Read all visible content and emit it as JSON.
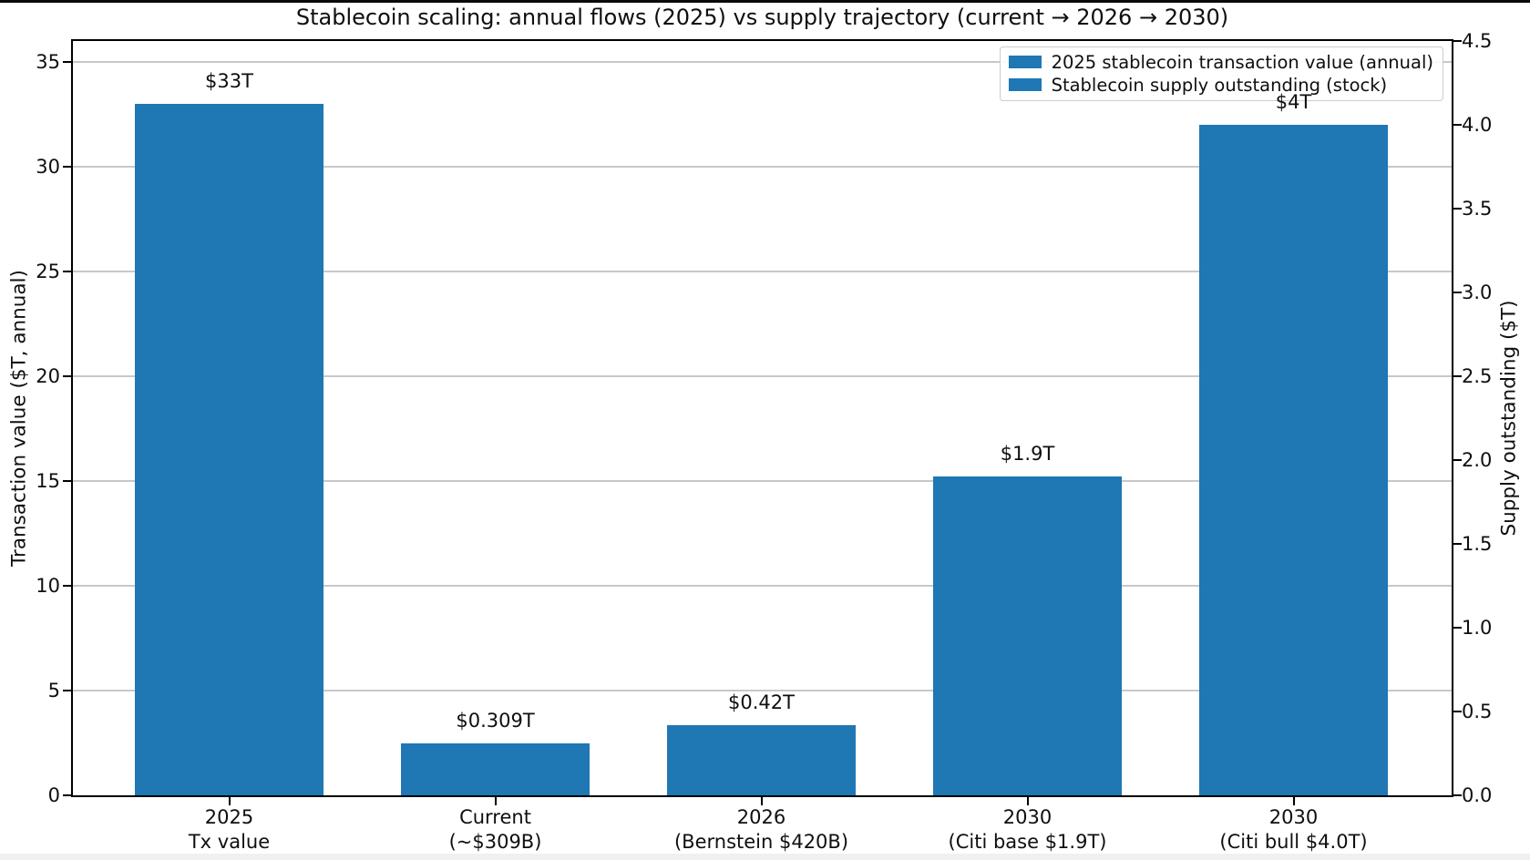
{
  "chart_data": {
    "type": "bar",
    "title": "Stablecoin scaling: annual flows (2025) vs supply trajectory (current → 2026 → 2030)",
    "ylabel_left": "Transaction value ($T, annual)",
    "ylabel_right": "Supply outstanding ($T)",
    "categories": [
      [
        "2025",
        "Tx value"
      ],
      [
        "Current",
        "(~$309B)"
      ],
      [
        "2026",
        "(Bernstein $420B)"
      ],
      [
        "2030",
        "(Citi base $1.9T)"
      ],
      [
        "2030",
        "(Citi bull $4.0T)"
      ]
    ],
    "bars": [
      {
        "value": 33,
        "axis": "left",
        "label": "$33T"
      },
      {
        "value": 0.309,
        "axis": "right",
        "label": "$0.309T"
      },
      {
        "value": 0.42,
        "axis": "right",
        "label": "$0.42T"
      },
      {
        "value": 1.9,
        "axis": "right",
        "label": "$1.9T"
      },
      {
        "value": 4.0,
        "axis": "right",
        "label": "$4T"
      }
    ],
    "bar_color": "#1f77b4",
    "left_axis": {
      "tick_labels": [
        "0",
        "5",
        "10",
        "15",
        "20",
        "25",
        "30",
        "35"
      ],
      "tick_values": [
        0,
        5,
        10,
        15,
        20,
        25,
        30,
        35
      ],
      "ylim": [
        0,
        36
      ]
    },
    "right_axis": {
      "tick_labels": [
        "0.0",
        "0.5",
        "1.0",
        "1.5",
        "2.0",
        "2.5",
        "3.0",
        "3.5",
        "4.0",
        "4.5"
      ],
      "tick_values": [
        0,
        0.5,
        1.0,
        1.5,
        2.0,
        2.5,
        3.0,
        3.5,
        4.0,
        4.5
      ],
      "ylim": [
        0,
        4.5
      ]
    },
    "grid": {
      "on": true,
      "axis": "left",
      "tick_values": [
        5,
        10,
        15,
        20,
        25,
        30,
        35
      ],
      "color": "#c8c8c8"
    },
    "legend": {
      "position": "upper right",
      "items": [
        {
          "label": "2025 stablecoin transaction value (annual)",
          "color": "#1f77b4"
        },
        {
          "label": "Stablecoin supply outstanding (stock)",
          "color": "#1f77b4"
        }
      ]
    }
  }
}
